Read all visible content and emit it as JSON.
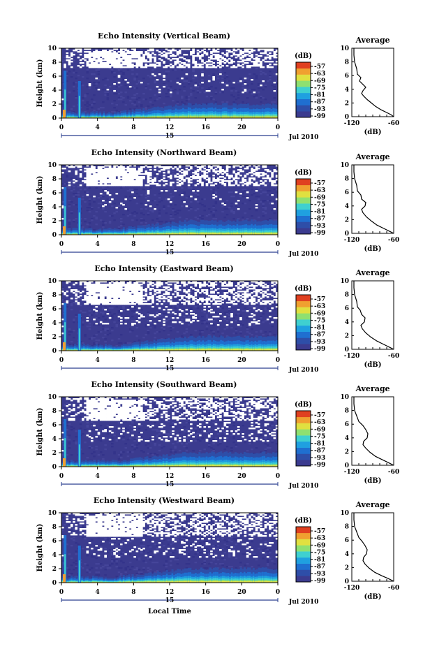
{
  "chart_data": [
    {
      "type": "heatmap",
      "title": "Echo Intensity (Vertical Beam)",
      "ylabel": "Height (km)",
      "ylim": [
        0,
        10
      ],
      "xlim": [
        0,
        24
      ],
      "x_ticks": [
        "0",
        "4",
        "8",
        "12",
        "16",
        "20",
        "0"
      ],
      "date_marker": "15",
      "date_label": "Jul 2010",
      "colorbar": {
        "label": "(dB)",
        "ticks": [
          "-57",
          "-63",
          "-69",
          "-75",
          "-81",
          "-87",
          "-93",
          "-99"
        ]
      },
      "average_panel": {
        "title": "Average",
        "xlabel": "(dB)",
        "x_ticks": [
          "-120",
          "-60"
        ],
        "y_ticks": [
          "0",
          "2",
          "4",
          "6",
          "8",
          "10"
        ],
        "xlim": [
          -120,
          -60
        ],
        "ylim": [
          0,
          10
        ],
        "profile": [
          {
            "h": 0.0,
            "db": -60
          },
          {
            "h": 0.3,
            "db": -64
          },
          {
            "h": 0.6,
            "db": -70
          },
          {
            "h": 1.0,
            "db": -78
          },
          {
            "h": 1.5,
            "db": -86
          },
          {
            "h": 2.0,
            "db": -92
          },
          {
            "h": 2.5,
            "db": -98
          },
          {
            "h": 3.0,
            "db": -103
          },
          {
            "h": 3.4,
            "db": -106
          },
          {
            "h": 3.8,
            "db": -104
          },
          {
            "h": 4.3,
            "db": -100
          },
          {
            "h": 4.7,
            "db": -104
          },
          {
            "h": 5.2,
            "db": -109
          },
          {
            "h": 5.7,
            "db": -107
          },
          {
            "h": 6.2,
            "db": -112
          },
          {
            "h": 7.0,
            "db": -113
          },
          {
            "h": 8.0,
            "db": -116
          },
          {
            "h": 9.0,
            "db": -117
          },
          {
            "h": 10.0,
            "db": -117
          }
        ]
      }
    },
    {
      "type": "heatmap",
      "title": "Echo Intensity (Northward Beam)",
      "ylabel": "Height (km)",
      "ylim": [
        0,
        10
      ],
      "xlim": [
        0,
        24
      ],
      "x_ticks": [
        "0",
        "4",
        "8",
        "12",
        "16",
        "20",
        "0"
      ],
      "date_marker": "15",
      "date_label": "Jul 2010",
      "colorbar": {
        "label": "(dB)",
        "ticks": [
          "-57",
          "-63",
          "-69",
          "-75",
          "-81",
          "-87",
          "-93",
          "-99"
        ]
      },
      "average_panel": {
        "title": "Average",
        "xlabel": "(dB)",
        "x_ticks": [
          "-120",
          "-60"
        ],
        "y_ticks": [
          "0",
          "2",
          "4",
          "6",
          "8",
          "10"
        ],
        "xlim": [
          -120,
          -60
        ],
        "ylim": [
          0,
          10
        ],
        "profile": [
          {
            "h": 0.0,
            "db": -60
          },
          {
            "h": 0.3,
            "db": -66
          },
          {
            "h": 0.7,
            "db": -74
          },
          {
            "h": 1.2,
            "db": -84
          },
          {
            "h": 1.8,
            "db": -92
          },
          {
            "h": 2.4,
            "db": -99
          },
          {
            "h": 3.0,
            "db": -104
          },
          {
            "h": 3.5,
            "db": -106
          },
          {
            "h": 4.0,
            "db": -101
          },
          {
            "h": 4.5,
            "db": -100
          },
          {
            "h": 5.0,
            "db": -106
          },
          {
            "h": 5.6,
            "db": -107
          },
          {
            "h": 6.2,
            "db": -112
          },
          {
            "h": 7.0,
            "db": -113
          },
          {
            "h": 8.0,
            "db": -116
          },
          {
            "h": 9.0,
            "db": -117
          },
          {
            "h": 10.0,
            "db": -117
          }
        ]
      }
    },
    {
      "type": "heatmap",
      "title": "Echo Intensity (Eastward Beam)",
      "ylabel": "Height (km)",
      "ylim": [
        0,
        10
      ],
      "xlim": [
        0,
        24
      ],
      "x_ticks": [
        "0",
        "4",
        "8",
        "12",
        "16",
        "20",
        "0"
      ],
      "date_marker": "15",
      "date_label": "Jul 2010",
      "colorbar": {
        "label": "(dB)",
        "ticks": [
          "-57",
          "-63",
          "-69",
          "-75",
          "-81",
          "-87",
          "-93",
          "-99"
        ]
      },
      "average_panel": {
        "title": "Average",
        "xlabel": "(dB)",
        "x_ticks": [
          "-120",
          "-60"
        ],
        "y_ticks": [
          "0",
          "2",
          "4",
          "6",
          "8",
          "10"
        ],
        "xlim": [
          -120,
          -60
        ],
        "ylim": [
          0,
          10
        ],
        "profile": [
          {
            "h": 0.0,
            "db": -60
          },
          {
            "h": 0.3,
            "db": -66
          },
          {
            "h": 0.7,
            "db": -74
          },
          {
            "h": 1.2,
            "db": -84
          },
          {
            "h": 1.8,
            "db": -93
          },
          {
            "h": 2.4,
            "db": -100
          },
          {
            "h": 3.0,
            "db": -105
          },
          {
            "h": 3.5,
            "db": -107
          },
          {
            "h": 4.0,
            "db": -102
          },
          {
            "h": 4.6,
            "db": -101
          },
          {
            "h": 5.1,
            "db": -106
          },
          {
            "h": 5.7,
            "db": -108
          },
          {
            "h": 6.2,
            "db": -112
          },
          {
            "h": 7.0,
            "db": -113
          },
          {
            "h": 8.0,
            "db": -116
          },
          {
            "h": 9.0,
            "db": -117
          },
          {
            "h": 10.0,
            "db": -117
          }
        ]
      }
    },
    {
      "type": "heatmap",
      "title": "Echo Intensity (Southward Beam)",
      "ylabel": "Height (km)",
      "ylim": [
        0,
        10
      ],
      "xlim": [
        0,
        24
      ],
      "x_ticks": [
        "0",
        "4",
        "8",
        "12",
        "16",
        "20",
        "0"
      ],
      "date_marker": "15",
      "date_label": "Jul 2010",
      "colorbar": {
        "label": "(dB)",
        "ticks": [
          "-57",
          "-63",
          "-69",
          "-75",
          "-81",
          "-87",
          "-93",
          "-99"
        ]
      },
      "average_panel": {
        "title": "Average",
        "xlabel": "(dB)",
        "x_ticks": [
          "-120",
          "-60"
        ],
        "y_ticks": [
          "0",
          "2",
          "4",
          "6",
          "8",
          "10"
        ],
        "xlim": [
          -120,
          -60
        ],
        "ylim": [
          0,
          10
        ],
        "profile": [
          {
            "h": 0.0,
            "db": -60
          },
          {
            "h": 0.4,
            "db": -68
          },
          {
            "h": 0.8,
            "db": -76
          },
          {
            "h": 1.3,
            "db": -86
          },
          {
            "h": 1.9,
            "db": -94
          },
          {
            "h": 2.5,
            "db": -100
          },
          {
            "h": 3.0,
            "db": -104
          },
          {
            "h": 3.5,
            "db": -103
          },
          {
            "h": 4.0,
            "db": -98
          },
          {
            "h": 4.6,
            "db": -97
          },
          {
            "h": 5.2,
            "db": -100
          },
          {
            "h": 5.8,
            "db": -104
          },
          {
            "h": 6.4,
            "db": -110
          },
          {
            "h": 7.2,
            "db": -113
          },
          {
            "h": 8.0,
            "db": -116
          },
          {
            "h": 9.0,
            "db": -117
          },
          {
            "h": 10.0,
            "db": -117
          }
        ]
      }
    },
    {
      "type": "heatmap",
      "title": "Echo Intensity (Westward Beam)",
      "ylabel": "Height (km)",
      "ylim": [
        0,
        10
      ],
      "xlim": [
        0,
        24
      ],
      "x_ticks": [
        "0",
        "4",
        "8",
        "12",
        "16",
        "20",
        "0"
      ],
      "date_marker": "15",
      "date_label": "Jul 2010",
      "xlabel": "Local Time",
      "colorbar": {
        "label": "(dB)",
        "ticks": [
          "-57",
          "-63",
          "-69",
          "-75",
          "-81",
          "-87",
          "-93",
          "-99"
        ]
      },
      "average_panel": {
        "title": "Average",
        "xlabel": "(dB)",
        "x_ticks": [
          "-120",
          "-60"
        ],
        "y_ticks": [
          "0",
          "2",
          "4",
          "6",
          "8",
          "10"
        ],
        "xlim": [
          -120,
          -60
        ],
        "ylim": [
          0,
          10
        ],
        "profile": [
          {
            "h": 0.0,
            "db": -60
          },
          {
            "h": 0.4,
            "db": -68
          },
          {
            "h": 0.8,
            "db": -77
          },
          {
            "h": 1.3,
            "db": -87
          },
          {
            "h": 1.9,
            "db": -95
          },
          {
            "h": 2.5,
            "db": -101
          },
          {
            "h": 3.0,
            "db": -104
          },
          {
            "h": 3.5,
            "db": -103
          },
          {
            "h": 4.0,
            "db": -99
          },
          {
            "h": 4.6,
            "db": -98
          },
          {
            "h": 5.2,
            "db": -101
          },
          {
            "h": 5.8,
            "db": -105
          },
          {
            "h": 6.4,
            "db": -110
          },
          {
            "h": 7.2,
            "db": -113
          },
          {
            "h": 8.0,
            "db": -116
          },
          {
            "h": 9.0,
            "db": -117
          },
          {
            "h": 10.0,
            "db": -117
          }
        ]
      }
    }
  ],
  "colors": {
    "background_echo": "#3b3b8f",
    "colormap": [
      "#3b3b8f",
      "#2e4ea8",
      "#1f6fd0",
      "#1fa0e0",
      "#3fd0d0",
      "#8fe070",
      "#e0e040",
      "#f0a030",
      "#e04020"
    ]
  }
}
